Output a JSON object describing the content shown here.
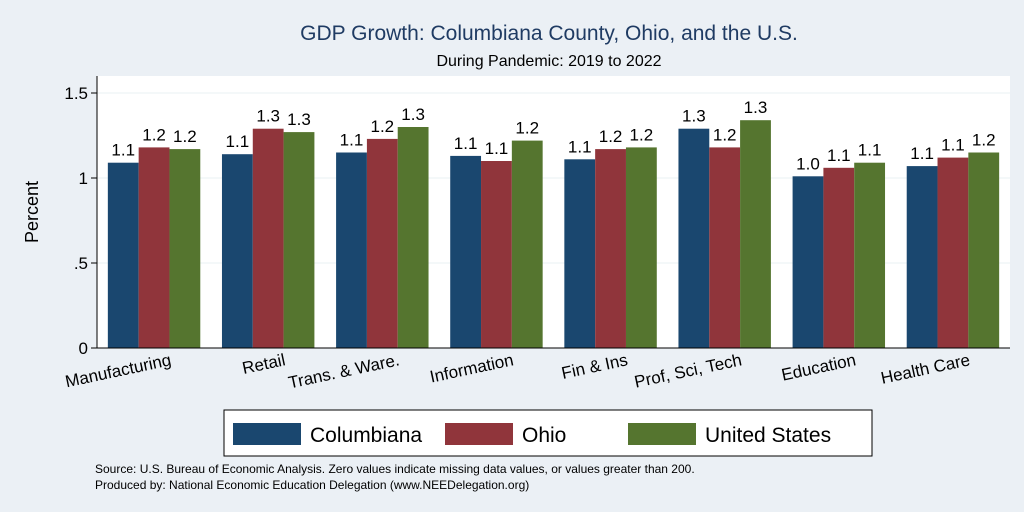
{
  "chart_data": {
    "type": "bar",
    "title": "GDP Growth: Columbiana County, Ohio, and the U.S.",
    "subtitle": "During Pandemic: 2019 to 2022",
    "xlabel": "",
    "ylabel": "Percent",
    "ylim": [
      0,
      1.6
    ],
    "yticks": [
      0,
      0.5,
      1,
      1.5
    ],
    "ytick_labels": [
      "0",
      ".5",
      "1",
      "1.5"
    ],
    "grid": true,
    "legend_position": "bottom",
    "categories": [
      "Manufacturing",
      "Retail",
      "Trans. & Ware.",
      "Information",
      "Fin & Ins",
      "Prof, Sci, Tech",
      "Education",
      "Health Care"
    ],
    "series": [
      {
        "name": "Columbiana",
        "color": "#1a476f",
        "values": [
          1.09,
          1.14,
          1.15,
          1.13,
          1.11,
          1.29,
          1.01,
          1.07
        ],
        "labels": [
          "1.1",
          "1.1",
          "1.1",
          "1.1",
          "1.1",
          "1.3",
          "1.0",
          "1.1"
        ]
      },
      {
        "name": "Ohio",
        "color": "#90353b",
        "values": [
          1.18,
          1.29,
          1.23,
          1.1,
          1.17,
          1.18,
          1.06,
          1.12
        ],
        "labels": [
          "1.2",
          "1.3",
          "1.2",
          "1.1",
          "1.2",
          "1.2",
          "1.1",
          "1.1"
        ]
      },
      {
        "name": "United States",
        "color": "#55752f",
        "values": [
          1.17,
          1.27,
          1.3,
          1.22,
          1.18,
          1.34,
          1.09,
          1.15
        ],
        "labels": [
          "1.2",
          "1.3",
          "1.3",
          "1.2",
          "1.2",
          "1.3",
          "1.1",
          "1.2"
        ]
      }
    ],
    "notes": [
      "Source: U.S. Bureau of Economic Analysis. Zero values indicate missing data values, or values greater than 200.",
      "Produced by: National Economic Education Delegation (www.NEEDelegation.org)"
    ]
  },
  "colors": {
    "background": "#ebf0f5",
    "plot_background": "#ffffff",
    "title": "#1f3b63"
  }
}
